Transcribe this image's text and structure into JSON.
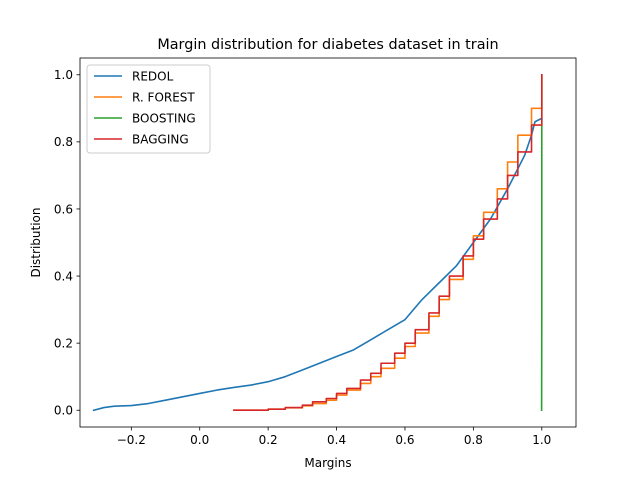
{
  "chart_data": {
    "type": "line",
    "title": "Margin distribution for diabetes dataset in train",
    "xlabel": "Margins",
    "ylabel": "Distribution",
    "xlim": [
      -0.35,
      1.1
    ],
    "ylim": [
      -0.05,
      1.05
    ],
    "xticks": [
      -0.2,
      0.0,
      0.2,
      0.4,
      0.6,
      0.8,
      1.0
    ],
    "xtick_labels": [
      "−0.2",
      "0.0",
      "0.2",
      "0.4",
      "0.6",
      "0.8",
      "1.0"
    ],
    "yticks": [
      0.0,
      0.2,
      0.4,
      0.6,
      0.8,
      1.0
    ],
    "ytick_labels": [
      "0.0",
      "0.2",
      "0.4",
      "0.6",
      "0.8",
      "1.0"
    ],
    "grid": false,
    "legend_position": "top-left",
    "series": [
      {
        "name": "REDOL",
        "color": "#1f77b4",
        "step": false,
        "x": [
          -0.31,
          -0.28,
          -0.25,
          -0.2,
          -0.15,
          -0.1,
          -0.05,
          0.0,
          0.05,
          0.1,
          0.15,
          0.2,
          0.25,
          0.3,
          0.35,
          0.4,
          0.45,
          0.5,
          0.55,
          0.6,
          0.65,
          0.7,
          0.75,
          0.8,
          0.85,
          0.9,
          0.95,
          0.97,
          0.98,
          1.0
        ],
        "y": [
          0.0,
          0.008,
          0.012,
          0.014,
          0.02,
          0.03,
          0.04,
          0.05,
          0.06,
          0.068,
          0.075,
          0.085,
          0.1,
          0.12,
          0.14,
          0.16,
          0.18,
          0.21,
          0.24,
          0.27,
          0.33,
          0.38,
          0.43,
          0.5,
          0.57,
          0.66,
          0.76,
          0.82,
          0.86,
          0.87
        ]
      },
      {
        "name": "R. FOREST",
        "color": "#ff7f0e",
        "step": true,
        "x": [
          0.1,
          0.2,
          0.25,
          0.3,
          0.33,
          0.37,
          0.4,
          0.43,
          0.47,
          0.5,
          0.53,
          0.57,
          0.6,
          0.63,
          0.67,
          0.7,
          0.73,
          0.77,
          0.8,
          0.83,
          0.87,
          0.9,
          0.93,
          0.97,
          1.0
        ],
        "y": [
          0.0,
          0.003,
          0.007,
          0.013,
          0.02,
          0.03,
          0.045,
          0.06,
          0.08,
          0.1,
          0.125,
          0.155,
          0.19,
          0.23,
          0.28,
          0.33,
          0.39,
          0.45,
          0.52,
          0.59,
          0.66,
          0.74,
          0.82,
          0.9,
          1.0
        ]
      },
      {
        "name": "BOOSTING",
        "color": "#2ca02c",
        "step": false,
        "x": [
          0.9995,
          1.0,
          1.0,
          1.0
        ],
        "y": [
          0.0,
          0.3,
          0.87,
          1.0
        ]
      },
      {
        "name": "BAGGING",
        "color": "#d62728",
        "step": true,
        "x": [
          0.1,
          0.2,
          0.25,
          0.3,
          0.33,
          0.37,
          0.4,
          0.43,
          0.47,
          0.5,
          0.53,
          0.57,
          0.6,
          0.63,
          0.67,
          0.7,
          0.73,
          0.77,
          0.8,
          0.83,
          0.87,
          0.9,
          0.93,
          0.97,
          1.0
        ],
        "y": [
          0.0,
          0.003,
          0.008,
          0.015,
          0.025,
          0.035,
          0.05,
          0.065,
          0.09,
          0.11,
          0.14,
          0.17,
          0.2,
          0.24,
          0.29,
          0.34,
          0.4,
          0.46,
          0.51,
          0.57,
          0.63,
          0.7,
          0.77,
          0.85,
          1.0
        ]
      }
    ]
  }
}
